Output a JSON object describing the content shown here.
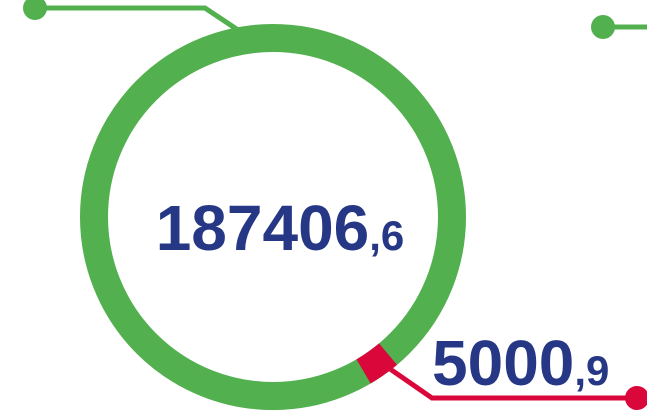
{
  "chart_data": {
    "type": "donut",
    "total": 187406.6,
    "total_label": "187406,6",
    "color": "#52b04f",
    "segments": [
      {
        "value": 5000.9,
        "value_label": "5000,9",
        "color": "#d9073a"
      }
    ]
  }
}
